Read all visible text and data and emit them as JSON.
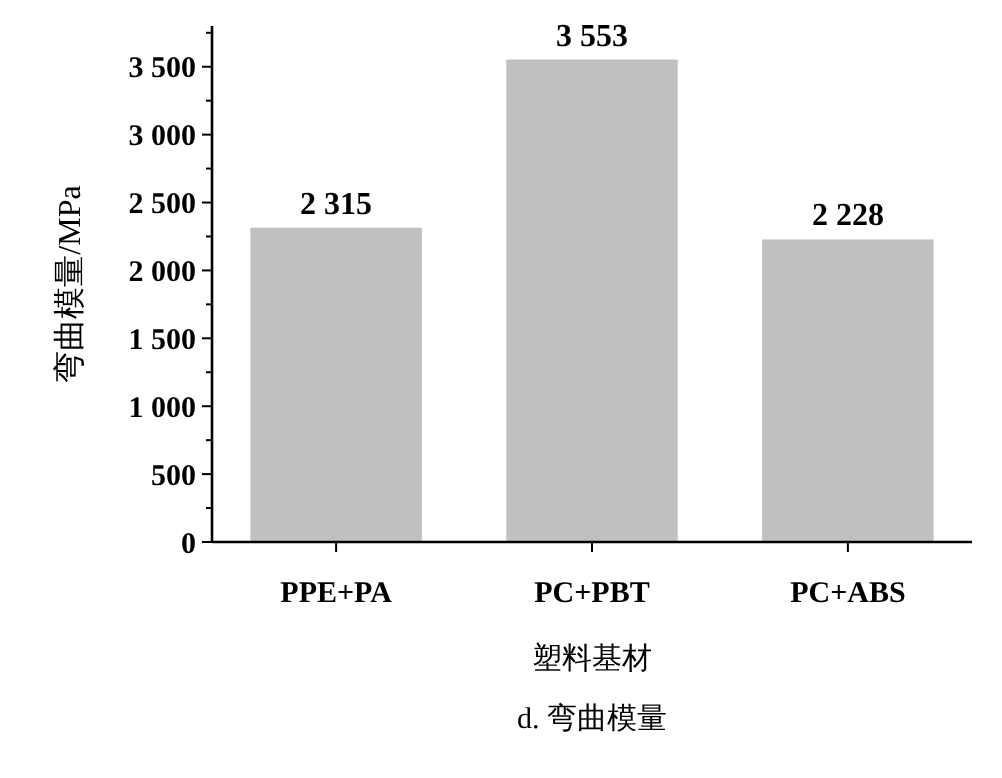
{
  "chart_data": {
    "type": "bar",
    "title": "d. 弯曲模量",
    "xlabel": "塑料基材",
    "ylabel": "弯曲模量/MPa",
    "categories": [
      "PPE+PA",
      "PC+PBT",
      "PC+ABS"
    ],
    "values": [
      2315,
      3553,
      2228
    ],
    "color": "#c0c0c0",
    "value_labels": [
      "2 315",
      "3 553",
      "2 228"
    ],
    "ylim": [
      0,
      3800
    ],
    "yticks": [
      0,
      {
        "value": 250,
        "label": null
      },
      500,
      {
        "value": 750,
        "label": null
      },
      {
        "value": 1000,
        "label": "1 000"
      },
      {
        "value": 1250,
        "label": null
      },
      {
        "value": 1500,
        "label": "1 500"
      },
      {
        "value": 1750,
        "label": null
      },
      {
        "value": 2000,
        "label": "2 000"
      },
      {
        "value": 2250,
        "label": null
      },
      {
        "value": 2500,
        "label": "2 500"
      },
      {
        "value": 2750,
        "label": null
      },
      {
        "value": 3000,
        "label": "3 000"
      },
      {
        "value": 3250,
        "label": null
      },
      {
        "value": 3500,
        "label": "3 500"
      },
      {
        "value": 3750,
        "label": null
      }
    ],
    "grid": false
  }
}
